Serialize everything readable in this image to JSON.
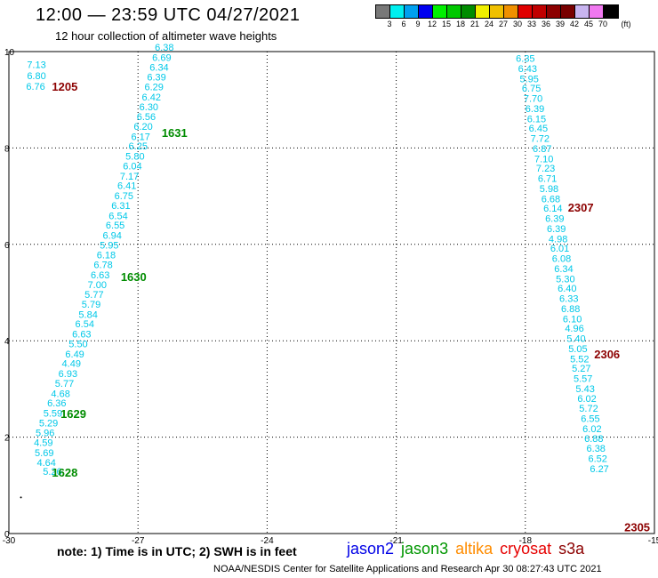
{
  "header": {
    "title": "12:00 — 23:59 UTC 04/27/2021",
    "subtitle": "12 hour collection of altimeter wave heights"
  },
  "legend": {
    "colors": [
      "#787878",
      "#00f0f0",
      "#00a0f0",
      "#0000f0",
      "#00f000",
      "#00c800",
      "#008c00",
      "#f0f000",
      "#f0c000",
      "#f09000",
      "#e00000",
      "#c00000",
      "#8c0000",
      "#780000",
      "#c8b4f0",
      "#f078f0",
      "#000000"
    ],
    "labels": [
      "3",
      "6",
      "9",
      "12",
      "15",
      "18",
      "21",
      "24",
      "27",
      "30",
      "33",
      "36",
      "39",
      "42",
      "45",
      "70"
    ],
    "unit": "(ft)"
  },
  "axes": {
    "x_ticks": [
      "-30",
      "-27",
      "-24",
      "-21",
      "-18",
      "-15"
    ],
    "y_ticks": [
      "0",
      "2",
      "4",
      "6",
      "8",
      "10"
    ]
  },
  "map_data": {
    "x_range": [
      -30,
      -15
    ],
    "y_range": [
      0,
      10
    ],
    "tracks": [
      {
        "color": "#00c8e8",
        "points": [
          {
            "x": -29.58,
            "y": 9.73,
            "v": "7.13"
          },
          {
            "x": -29.58,
            "y": 9.5,
            "v": "6.80"
          },
          {
            "x": -29.6,
            "y": 9.28,
            "v": "6.76"
          },
          {
            "x": -29.21,
            "y": 1.29,
            "v": "5.26"
          },
          {
            "x": -29.35,
            "y": 1.48,
            "v": "4.64"
          },
          {
            "x": -29.4,
            "y": 1.68,
            "v": "5.69"
          },
          {
            "x": -29.42,
            "y": 1.89,
            "v": "4.59"
          },
          {
            "x": -29.38,
            "y": 2.09,
            "v": "5.96"
          },
          {
            "x": -29.3,
            "y": 2.3,
            "v": "5.29"
          },
          {
            "x": -29.2,
            "y": 2.5,
            "v": "5.59"
          },
          {
            "x": -29.11,
            "y": 2.71,
            "v": "6.36"
          },
          {
            "x": -29.02,
            "y": 2.91,
            "v": "4.68"
          },
          {
            "x": -28.93,
            "y": 3.12,
            "v": "5.77"
          },
          {
            "x": -28.85,
            "y": 3.32,
            "v": "6.93"
          },
          {
            "x": -28.77,
            "y": 3.53,
            "v": "4.49"
          },
          {
            "x": -28.69,
            "y": 3.73,
            "v": "6.49"
          },
          {
            "x": -28.61,
            "y": 3.94,
            "v": "5.50"
          },
          {
            "x": -28.53,
            "y": 4.14,
            "v": "6.63"
          },
          {
            "x": -28.46,
            "y": 4.35,
            "v": "6.54"
          },
          {
            "x": -28.38,
            "y": 4.55,
            "v": "5.84"
          },
          {
            "x": -28.31,
            "y": 4.76,
            "v": "5.79"
          },
          {
            "x": -28.24,
            "y": 4.96,
            "v": "5.77"
          },
          {
            "x": -28.17,
            "y": 5.17,
            "v": "7.00"
          },
          {
            "x": -28.1,
            "y": 5.37,
            "v": "6.63"
          },
          {
            "x": -28.03,
            "y": 5.58,
            "v": "6.78"
          },
          {
            "x": -27.96,
            "y": 5.78,
            "v": "6.18"
          },
          {
            "x": -27.89,
            "y": 5.99,
            "v": "5.95"
          },
          {
            "x": -27.82,
            "y": 6.19,
            "v": "6.94"
          },
          {
            "x": -27.75,
            "y": 6.4,
            "v": "6.55"
          },
          {
            "x": -27.68,
            "y": 6.6,
            "v": "6.54"
          },
          {
            "x": -27.62,
            "y": 6.81,
            "v": "6.31"
          },
          {
            "x": -27.55,
            "y": 7.01,
            "v": "6.75"
          },
          {
            "x": -27.48,
            "y": 7.22,
            "v": "6.41"
          },
          {
            "x": -27.42,
            "y": 7.42,
            "v": "7.17"
          },
          {
            "x": -27.35,
            "y": 7.63,
            "v": "6.04"
          },
          {
            "x": -27.29,
            "y": 7.83,
            "v": "5.80"
          },
          {
            "x": -27.22,
            "y": 8.04,
            "v": "6.25"
          },
          {
            "x": -27.16,
            "y": 8.24,
            "v": "6.17"
          },
          {
            "x": -27.1,
            "y": 8.45,
            "v": "6.20"
          },
          {
            "x": -27.03,
            "y": 8.65,
            "v": "6.56"
          },
          {
            "x": -26.97,
            "y": 8.86,
            "v": "6.30"
          },
          {
            "x": -26.91,
            "y": 9.06,
            "v": "6.42"
          },
          {
            "x": -26.85,
            "y": 9.27,
            "v": "6.29"
          },
          {
            "x": -26.79,
            "y": 9.47,
            "v": "6.39"
          },
          {
            "x": -26.73,
            "y": 9.68,
            "v": "6.34"
          },
          {
            "x": -26.67,
            "y": 9.88,
            "v": "6.69"
          },
          {
            "x": -26.61,
            "y": 10.09,
            "v": "6.38"
          }
        ]
      },
      {
        "color": "#00c8e8",
        "points": [
          {
            "x": -18.22,
            "y": 9.86,
            "v": "6.35"
          },
          {
            "x": -18.17,
            "y": 9.65,
            "v": "6.43"
          },
          {
            "x": -18.13,
            "y": 9.44,
            "v": "5.95"
          },
          {
            "x": -18.08,
            "y": 9.24,
            "v": "6.75"
          },
          {
            "x": -18.04,
            "y": 9.03,
            "v": "7.70"
          },
          {
            "x": -18.0,
            "y": 8.82,
            "v": "6.39"
          },
          {
            "x": -17.96,
            "y": 8.61,
            "v": "6.15"
          },
          {
            "x": -17.92,
            "y": 8.41,
            "v": "6.45"
          },
          {
            "x": -17.88,
            "y": 8.2,
            "v": "7.72"
          },
          {
            "x": -17.83,
            "y": 7.99,
            "v": "6.87"
          },
          {
            "x": -17.79,
            "y": 7.78,
            "v": "7.10"
          },
          {
            "x": -17.75,
            "y": 7.58,
            "v": "7.23"
          },
          {
            "x": -17.71,
            "y": 7.37,
            "v": "6.71"
          },
          {
            "x": -17.67,
            "y": 7.16,
            "v": "5.98"
          },
          {
            "x": -17.63,
            "y": 6.95,
            "v": "6.68"
          },
          {
            "x": -17.58,
            "y": 6.75,
            "v": "6.14"
          },
          {
            "x": -17.54,
            "y": 6.54,
            "v": "6.39"
          },
          {
            "x": -17.5,
            "y": 6.33,
            "v": "6.39"
          },
          {
            "x": -17.46,
            "y": 6.12,
            "v": "4.98"
          },
          {
            "x": -17.42,
            "y": 5.92,
            "v": "6.01"
          },
          {
            "x": -17.38,
            "y": 5.71,
            "v": "6.08"
          },
          {
            "x": -17.33,
            "y": 5.5,
            "v": "6.34"
          },
          {
            "x": -17.29,
            "y": 5.29,
            "v": "5.30"
          },
          {
            "x": -17.25,
            "y": 5.09,
            "v": "6.40"
          },
          {
            "x": -17.21,
            "y": 4.88,
            "v": "6.33"
          },
          {
            "x": -17.17,
            "y": 4.67,
            "v": "6.88"
          },
          {
            "x": -17.13,
            "y": 4.46,
            "v": "6.10"
          },
          {
            "x": -17.08,
            "y": 4.26,
            "v": "4.96"
          },
          {
            "x": -17.04,
            "y": 4.05,
            "v": "5.40"
          },
          {
            "x": -17.0,
            "y": 3.84,
            "v": "5.05"
          },
          {
            "x": -16.96,
            "y": 3.63,
            "v": "5.52"
          },
          {
            "x": -16.92,
            "y": 3.43,
            "v": "5.27"
          },
          {
            "x": -16.88,
            "y": 3.22,
            "v": "5.57"
          },
          {
            "x": -16.83,
            "y": 3.01,
            "v": "5.43"
          },
          {
            "x": -16.79,
            "y": 2.8,
            "v": "6.02"
          },
          {
            "x": -16.75,
            "y": 2.6,
            "v": "5.72"
          },
          {
            "x": -16.71,
            "y": 2.39,
            "v": "6.55"
          },
          {
            "x": -16.67,
            "y": 2.18,
            "v": "6.02"
          },
          {
            "x": -16.63,
            "y": 1.97,
            "v": "6.88"
          },
          {
            "x": -16.58,
            "y": 1.77,
            "v": "6.38"
          },
          {
            "x": -16.54,
            "y": 1.56,
            "v": "6.52"
          },
          {
            "x": -16.5,
            "y": 1.35,
            "v": "6.27"
          }
        ]
      }
    ],
    "time_labels": [
      {
        "x": -29.0,
        "y": 9.28,
        "label": "1205",
        "color": "#8c0000"
      },
      {
        "x": -26.45,
        "y": 8.32,
        "label": "1631",
        "color": "#008c00"
      },
      {
        "x": -27.4,
        "y": 5.33,
        "label": "1630",
        "color": "#008c00"
      },
      {
        "x": -28.8,
        "y": 2.49,
        "label": "1629",
        "color": "#008c00"
      },
      {
        "x": -29.0,
        "y": 1.27,
        "label": "1628",
        "color": "#008c00"
      },
      {
        "x": -17.01,
        "y": 6.77,
        "label": "2307",
        "color": "#8c0000"
      },
      {
        "x": -16.4,
        "y": 3.73,
        "label": "2306",
        "color": "#8c0000"
      },
      {
        "x": -15.7,
        "y": 0.14,
        "label": "2305",
        "color": "#8c0000"
      }
    ],
    "extra_mark": {
      "x": -29.72,
      "y": 0.75
    }
  },
  "footer": {
    "note": "note: 1) Time is in UTC; 2) SWH is in feet",
    "satellites": [
      {
        "name": "jason2",
        "color": "#0000e6"
      },
      {
        "name": "jason3",
        "color": "#009600"
      },
      {
        "name": "altika",
        "color": "#ff8c00"
      },
      {
        "name": "cryosat",
        "color": "#e60000"
      },
      {
        "name": "s3a",
        "color": "#8c0000"
      }
    ],
    "credit": "NOAA/NESDIS Center for Satellite Applications and Research    Apr 30 08:27:43 UTC 2021"
  }
}
